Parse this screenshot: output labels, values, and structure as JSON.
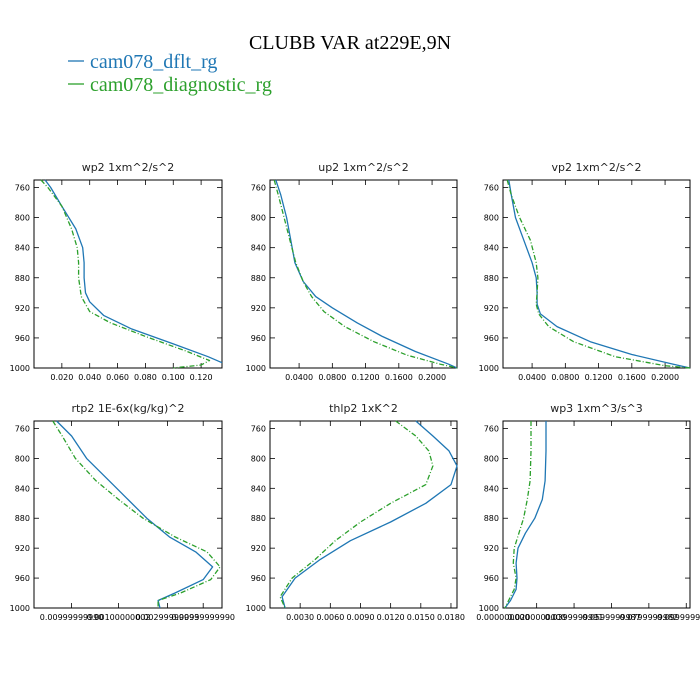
{
  "title": "CLUBB VAR at229E,9N",
  "legend": [
    {
      "label": "cam078_dflt_rg",
      "color": "#1f77b4",
      "dash": "none"
    },
    {
      "label": "cam078_diagnostic_rg",
      "color": "#2ca02c",
      "dash": "5,2,1,2"
    }
  ],
  "chart_data": [
    {
      "type": "line",
      "title": "wp2  1xm^2/s^2",
      "xlabel": "",
      "ylabel": "",
      "xlim": [
        0,
        0.135
      ],
      "ylim": [
        750,
        1000
      ],
      "xticks": [
        0.02,
        0.04,
        0.06,
        0.08,
        0.1,
        0.12
      ],
      "xtick_labels": [
        "0.020",
        "0.040",
        "0.060",
        "0.080",
        "0.100",
        "0.120"
      ],
      "yticks": [
        760,
        800,
        840,
        880,
        920,
        960,
        1000
      ],
      "ytick_labels": [
        "760",
        "800",
        "840",
        "880",
        "920",
        "960",
        "1000"
      ],
      "series": [
        {
          "name": "cam078_dflt_rg",
          "x": [
            0.008,
            0.012,
            0.02,
            0.03,
            0.035,
            0.036,
            0.036,
            0.037,
            0.04,
            0.05,
            0.07,
            0.1,
            0.125,
            0.135
          ],
          "y": [
            750,
            760,
            785,
            815,
            840,
            860,
            880,
            900,
            912,
            930,
            948,
            968,
            985,
            993
          ]
        },
        {
          "name": "cam078_diagnostic_rg",
          "x": [
            0.005,
            0.01,
            0.02,
            0.027,
            0.031,
            0.032,
            0.032,
            0.034,
            0.04,
            0.055,
            0.08,
            0.11,
            0.126,
            0.12,
            0.1
          ],
          "y": [
            750,
            760,
            785,
            815,
            840,
            860,
            880,
            905,
            925,
            940,
            958,
            978,
            990,
            996,
            1000
          ]
        }
      ]
    },
    {
      "type": "line",
      "title": "up2  1xm^2/s^2",
      "xlabel": "",
      "ylabel": "",
      "xlim": [
        0.005,
        0.23
      ],
      "ylim": [
        750,
        1000
      ],
      "xticks": [
        0.04,
        0.08,
        0.12,
        0.16,
        0.2
      ],
      "xtick_labels": [
        "0.0400",
        "0.0800",
        "0.1200",
        "0.1600",
        "0.2000"
      ],
      "yticks": [
        760,
        800,
        840,
        880,
        920,
        960,
        1000
      ],
      "ytick_labels": [
        "760",
        "800",
        "840",
        "880",
        "920",
        "960",
        "1000"
      ],
      "series": [
        {
          "name": "cam078_dflt_rg",
          "x": [
            0.012,
            0.018,
            0.025,
            0.03,
            0.035,
            0.045,
            0.06,
            0.08,
            0.11,
            0.14,
            0.18,
            0.22,
            0.23
          ],
          "y": [
            750,
            770,
            800,
            830,
            860,
            885,
            905,
            920,
            940,
            958,
            978,
            995,
            1000
          ]
        },
        {
          "name": "cam078_diagnostic_rg",
          "x": [
            0.01,
            0.015,
            0.022,
            0.029,
            0.036,
            0.045,
            0.055,
            0.07,
            0.095,
            0.13,
            0.17,
            0.21,
            0.23
          ],
          "y": [
            750,
            770,
            800,
            830,
            860,
            885,
            905,
            925,
            945,
            965,
            983,
            995,
            1000
          ]
        }
      ]
    },
    {
      "type": "line",
      "title": "vp2  1xm^2/s^2",
      "xlabel": "",
      "ylabel": "",
      "xlim": [
        0.005,
        0.23
      ],
      "ylim": [
        750,
        1000
      ],
      "xticks": [
        0.04,
        0.08,
        0.12,
        0.16,
        0.2
      ],
      "xtick_labels": [
        "0.0400",
        "0.0800",
        "0.1200",
        "0.1600",
        "0.2000"
      ],
      "yticks": [
        760,
        800,
        840,
        880,
        920,
        960,
        1000
      ],
      "ytick_labels": [
        "760",
        "800",
        "840",
        "880",
        "920",
        "960",
        "1000"
      ],
      "series": [
        {
          "name": "cam078_dflt_rg",
          "x": [
            0.012,
            0.015,
            0.02,
            0.03,
            0.04,
            0.045,
            0.046,
            0.046,
            0.05,
            0.07,
            0.11,
            0.16,
            0.21,
            0.23
          ],
          "y": [
            750,
            770,
            800,
            830,
            860,
            880,
            900,
            915,
            928,
            945,
            965,
            982,
            995,
            1000
          ]
        },
        {
          "name": "cam078_diagnostic_rg",
          "x": [
            0.01,
            0.015,
            0.025,
            0.038,
            0.045,
            0.047,
            0.046,
            0.045,
            0.048,
            0.06,
            0.09,
            0.14,
            0.2,
            0.23
          ],
          "y": [
            750,
            770,
            800,
            830,
            860,
            880,
            900,
            915,
            928,
            945,
            965,
            985,
            997,
            1000
          ]
        }
      ]
    },
    {
      "type": "line",
      "title": "rtp2  1E-6x(kg/kg)^2",
      "xlabel": "",
      "ylabel": "",
      "xlim": [
        0.0,
        1.0
      ],
      "ylim": [
        750,
        1000
      ],
      "xticks": [
        0.2,
        0.45,
        0.71,
        0.9
      ],
      "xtick_labels": [
        "0.00999999990",
        "0.00100000002",
        "0.00299999993",
        "0.00999999990"
      ],
      "yticks": [
        760,
        800,
        840,
        880,
        920,
        960,
        1000
      ],
      "ytick_labels": [
        "760",
        "800",
        "840",
        "880",
        "920",
        "960",
        "1000"
      ],
      "series": [
        {
          "name": "cam078_dflt_rg",
          "x": [
            0.12,
            0.2,
            0.28,
            0.4,
            0.5,
            0.6,
            0.72,
            0.86,
            0.95,
            0.9,
            0.75,
            0.66,
            0.67
          ],
          "y": [
            750,
            770,
            800,
            830,
            855,
            880,
            905,
            925,
            945,
            962,
            980,
            990,
            1000
          ]
        },
        {
          "name": "cam078_diagnostic_rg",
          "x": [
            0.1,
            0.15,
            0.22,
            0.33,
            0.45,
            0.58,
            0.75,
            0.92,
            0.99,
            0.94,
            0.78,
            0.66,
            0.66
          ],
          "y": [
            750,
            770,
            800,
            830,
            855,
            880,
            905,
            925,
            945,
            962,
            980,
            990,
            1000
          ]
        }
      ]
    },
    {
      "type": "line",
      "title": "thlp2  1xK^2",
      "xlabel": "",
      "ylabel": "",
      "xlim": [
        0.0,
        0.0186
      ],
      "ylim": [
        750,
        1000
      ],
      "xticks": [
        0.003,
        0.006,
        0.009,
        0.012,
        0.015,
        0.018
      ],
      "xtick_labels": [
        "0.0030",
        "0.0060",
        "0.0090",
        "0.0120",
        "0.0150",
        "0.0180"
      ],
      "yticks": [
        760,
        800,
        840,
        880,
        920,
        960,
        1000
      ],
      "ytick_labels": [
        "760",
        "800",
        "840",
        "880",
        "920",
        "960",
        "1000"
      ],
      "series": [
        {
          "name": "cam078_dflt_rg",
          "x": [
            0.0145,
            0.0162,
            0.0178,
            0.0186,
            0.018,
            0.0155,
            0.012,
            0.008,
            0.005,
            0.0025,
            0.0012,
            0.0015
          ],
          "y": [
            750,
            770,
            790,
            810,
            835,
            860,
            885,
            910,
            935,
            960,
            985,
            1000
          ]
        },
        {
          "name": "cam078_diagnostic_rg",
          "x": [
            0.0125,
            0.0145,
            0.0158,
            0.0162,
            0.0155,
            0.012,
            0.009,
            0.0065,
            0.0045,
            0.0022,
            0.001,
            0.0015
          ],
          "y": [
            750,
            770,
            790,
            810,
            835,
            860,
            885,
            910,
            935,
            960,
            985,
            1000
          ]
        }
      ]
    },
    {
      "type": "line",
      "title": "wp3  1xm^3/s^3",
      "xlabel": "",
      "ylabel": "",
      "xlim": [
        0.0,
        1.0
      ],
      "ylim": [
        750,
        1000
      ],
      "xticks": [
        0.0,
        0.18,
        0.38,
        0.58,
        0.78,
        0.98
      ],
      "xtick_labels": [
        "0.000000000",
        "0.0200000000",
        "0.0399999991",
        "0.0599999987",
        "0.0799999982",
        "0.0999999940"
      ],
      "yticks": [
        760,
        800,
        840,
        880,
        920,
        960,
        1000
      ],
      "ytick_labels": [
        "760",
        "800",
        "840",
        "880",
        "920",
        "960",
        "1000"
      ],
      "series": [
        {
          "name": "cam078_dflt_rg",
          "x": [
            0.23,
            0.23,
            0.225,
            0.21,
            0.17,
            0.12,
            0.08,
            0.07,
            0.075,
            0.07,
            0.04,
            0.01
          ],
          "y": [
            750,
            790,
            830,
            855,
            880,
            900,
            920,
            940,
            960,
            975,
            990,
            1000
          ]
        },
        {
          "name": "cam078_diagnostic_rg",
          "x": [
            0.15,
            0.15,
            0.145,
            0.13,
            0.11,
            0.085,
            0.06,
            0.055,
            0.07,
            0.06,
            0.03,
            0.01
          ],
          "y": [
            750,
            790,
            830,
            855,
            880,
            900,
            920,
            940,
            960,
            975,
            990,
            1000
          ]
        }
      ]
    }
  ]
}
